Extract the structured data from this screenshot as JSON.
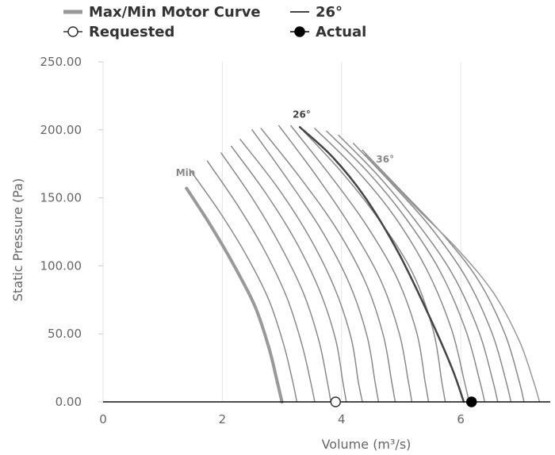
{
  "chart_data": {
    "type": "line",
    "title": "",
    "xlabel": "Volume (m³/s)",
    "ylabel": "Static Pressure (Pa)",
    "xlim": [
      0,
      7.5
    ],
    "ylim": [
      0,
      250
    ],
    "x_ticks": [
      0,
      2,
      4,
      6
    ],
    "x_tick_labels": [
      "0",
      "2",
      "4",
      "6"
    ],
    "y_ticks": [
      0,
      50,
      100,
      150,
      200,
      250
    ],
    "y_tick_labels": [
      "0.00",
      "50.00",
      "100.00",
      "150.00",
      "200.00",
      "250.00"
    ],
    "grid": "vertical",
    "legend": {
      "placement": "top",
      "items": [
        {
          "label": "Max/Min Motor Curve",
          "symbol": "thick-line",
          "color": "#999999"
        },
        {
          "label": "26°",
          "symbol": "line",
          "color": "#444444"
        },
        {
          "label": "Requested",
          "symbol": "open-circle",
          "color": "#333333"
        },
        {
          "label": "Actual",
          "symbol": "filled-circle",
          "color": "#000000"
        }
      ]
    },
    "curve_labels": [
      {
        "text": "Min",
        "x": 1.22,
        "y": 166,
        "color": "#888888"
      },
      {
        "text": "26°",
        "x": 3.18,
        "y": 209,
        "color": "#444444"
      },
      {
        "text": "36°",
        "x": 4.58,
        "y": 176,
        "color": "#888888"
      }
    ],
    "series": [
      {
        "name": "Min",
        "role": "min",
        "color": "#999999",
        "width": 4,
        "points": [
          [
            1.4,
            157
          ],
          [
            1.8,
            130
          ],
          [
            2.2,
            100
          ],
          [
            2.55,
            70
          ],
          [
            2.78,
            40
          ],
          [
            2.92,
            15
          ],
          [
            3.0,
            0
          ]
        ]
      },
      {
        "role": "curve",
        "color": "#8a8a8a",
        "width": 1.5,
        "points": [
          [
            1.45,
            171
          ],
          [
            1.95,
            140
          ],
          [
            2.4,
            108
          ],
          [
            2.78,
            75
          ],
          [
            3.03,
            42
          ],
          [
            3.18,
            15
          ],
          [
            3.25,
            0
          ]
        ]
      },
      {
        "role": "curve",
        "color": "#8a8a8a",
        "width": 1.5,
        "points": [
          [
            1.75,
            177
          ],
          [
            2.25,
            145
          ],
          [
            2.7,
            112
          ],
          [
            3.08,
            77
          ],
          [
            3.33,
            43
          ],
          [
            3.48,
            15
          ],
          [
            3.55,
            0
          ]
        ]
      },
      {
        "role": "curve",
        "color": "#8a8a8a",
        "width": 1.5,
        "points": [
          [
            1.98,
            183
          ],
          [
            2.5,
            150
          ],
          [
            2.96,
            116
          ],
          [
            3.36,
            80
          ],
          [
            3.62,
            45
          ],
          [
            3.76,
            15
          ],
          [
            3.82,
            0
          ]
        ]
      },
      {
        "role": "curve",
        "color": "#8a8a8a",
        "width": 1.5,
        "points": [
          [
            2.15,
            188
          ],
          [
            2.72,
            154
          ],
          [
            3.22,
            119
          ],
          [
            3.63,
            82
          ],
          [
            3.9,
            46
          ],
          [
            4.02,
            15
          ],
          [
            4.08,
            0
          ]
        ]
      },
      {
        "role": "curve",
        "color": "#8a8a8a",
        "width": 1.5,
        "points": [
          [
            2.3,
            193
          ],
          [
            2.92,
            158
          ],
          [
            3.45,
            122
          ],
          [
            3.88,
            84
          ],
          [
            4.16,
            47
          ],
          [
            4.28,
            15
          ],
          [
            4.35,
            0
          ]
        ]
      },
      {
        "role": "curve",
        "color": "#8a8a8a",
        "width": 1.5,
        "points": [
          [
            2.5,
            200
          ],
          [
            3.12,
            162
          ],
          [
            3.68,
            125
          ],
          [
            4.14,
            86
          ],
          [
            4.43,
            48
          ],
          [
            4.56,
            15
          ],
          [
            4.62,
            0
          ]
        ]
      },
      {
        "role": "curve",
        "color": "#8a8a8a",
        "width": 1.5,
        "points": [
          [
            2.65,
            201
          ],
          [
            3.32,
            164
          ],
          [
            3.92,
            127
          ],
          [
            4.4,
            88
          ],
          [
            4.7,
            49
          ],
          [
            4.84,
            15
          ],
          [
            4.9,
            0
          ]
        ]
      },
      {
        "role": "curve",
        "color": "#8a8a8a",
        "width": 1.5,
        "points": [
          [
            2.95,
            203
          ],
          [
            3.58,
            166
          ],
          [
            4.15,
            129
          ],
          [
            4.65,
            90
          ],
          [
            4.97,
            50
          ],
          [
            5.12,
            15
          ],
          [
            5.18,
            0
          ]
        ]
      },
      {
        "role": "curve",
        "color": "#8a8a8a",
        "width": 1.5,
        "points": [
          [
            3.15,
            203
          ],
          [
            3.8,
            167
          ],
          [
            4.4,
            131
          ],
          [
            4.92,
            92
          ],
          [
            5.26,
            51
          ],
          [
            5.4,
            15
          ],
          [
            5.46,
            0
          ]
        ]
      },
      {
        "role": "curve",
        "color": "#8a8a8a",
        "width": 1.5,
        "points": [
          [
            3.3,
            202
          ],
          [
            4.02,
            168
          ],
          [
            4.66,
            132
          ],
          [
            5.2,
            94
          ],
          [
            5.54,
            52
          ],
          [
            5.68,
            15
          ],
          [
            5.74,
            0
          ]
        ]
      },
      {
        "name": "26°",
        "role": "highlight",
        "color": "#444444",
        "width": 2.5,
        "points": [
          [
            3.3,
            202
          ],
          [
            3.85,
            180
          ],
          [
            4.4,
            150
          ],
          [
            4.95,
            110
          ],
          [
            5.45,
            65
          ],
          [
            5.85,
            25
          ],
          [
            6.05,
            0
          ]
        ]
      },
      {
        "role": "curve",
        "color": "#8a8a8a",
        "width": 1.5,
        "points": [
          [
            3.55,
            201
          ],
          [
            4.22,
            172
          ],
          [
            4.86,
            138
          ],
          [
            5.42,
            98
          ],
          [
            5.84,
            54
          ],
          [
            6.06,
            15
          ],
          [
            6.14,
            0
          ]
        ]
      },
      {
        "role": "curve",
        "color": "#8a8a8a",
        "width": 1.5,
        "points": [
          [
            3.75,
            199
          ],
          [
            4.42,
            170
          ],
          [
            5.06,
            136
          ],
          [
            5.64,
            97
          ],
          [
            6.08,
            53
          ],
          [
            6.32,
            15
          ],
          [
            6.4,
            0
          ]
        ]
      },
      {
        "role": "curve",
        "color": "#8a8a8a",
        "width": 1.5,
        "points": [
          [
            3.95,
            196
          ],
          [
            4.62,
            166
          ],
          [
            5.26,
            132
          ],
          [
            5.86,
            94
          ],
          [
            6.3,
            52
          ],
          [
            6.54,
            15
          ],
          [
            6.62,
            0
          ]
        ]
      },
      {
        "role": "curve",
        "color": "#8a8a8a",
        "width": 1.5,
        "points": [
          [
            4.2,
            190
          ],
          [
            4.85,
            160
          ],
          [
            5.5,
            128
          ],
          [
            6.08,
            92
          ],
          [
            6.52,
            51
          ],
          [
            6.76,
            15
          ],
          [
            6.84,
            0
          ]
        ]
      },
      {
        "role": "curve",
        "color": "#8a8a8a",
        "width": 1.5,
        "points": [
          [
            4.35,
            185
          ],
          [
            5.05,
            153
          ],
          [
            5.72,
            122
          ],
          [
            6.3,
            89
          ],
          [
            6.74,
            50
          ],
          [
            6.98,
            15
          ],
          [
            7.06,
            0
          ]
        ]
      },
      {
        "name": "Max",
        "role": "max",
        "color": "#999999",
        "width": 1.5,
        "points": [
          [
            4.4,
            182
          ],
          [
            5.2,
            145
          ],
          [
            5.95,
            112
          ],
          [
            6.55,
            80
          ],
          [
            6.98,
            45
          ],
          [
            7.22,
            15
          ],
          [
            7.32,
            0
          ]
        ]
      }
    ],
    "points": [
      {
        "name": "Requested",
        "x": 3.9,
        "y": 0,
        "style": "open"
      },
      {
        "name": "Actual",
        "x": 6.18,
        "y": 0,
        "style": "filled"
      }
    ]
  }
}
